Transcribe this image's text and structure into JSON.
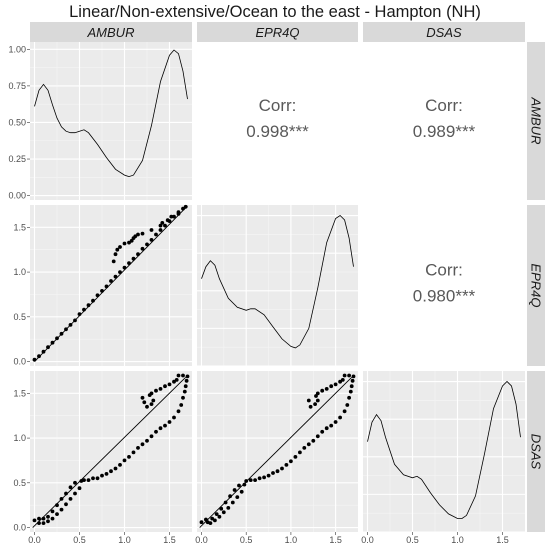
{
  "title": "Linear/Non-extensive/Ocean to the east - Hampton (NH)",
  "variables": [
    "AMBUR",
    "EPR4Q",
    "DSAS"
  ],
  "colors": {
    "panel_bg": "#ebebeb",
    "grid_major": "#ffffff",
    "strip_bg": "#d9d9d9",
    "ink": "#000000"
  },
  "chart_data": {
    "type": "scatter",
    "layout": "pairs-matrix",
    "grid": true,
    "x_ticks": [
      "0.0",
      "0.5",
      "1.0",
      "1.5"
    ],
    "x_range": [
      -0.05,
      1.75
    ],
    "density_panels": [
      {
        "name": "AMBUR",
        "y_ticks": [
          "0.00",
          "0.25",
          "0.50",
          "0.75",
          "1.00"
        ],
        "y_range": [
          -0.03,
          1.05
        ],
        "curve": [
          [
            0.0,
            0.61
          ],
          [
            0.05,
            0.72
          ],
          [
            0.1,
            0.76
          ],
          [
            0.15,
            0.72
          ],
          [
            0.2,
            0.62
          ],
          [
            0.25,
            0.53
          ],
          [
            0.3,
            0.47
          ],
          [
            0.35,
            0.44
          ],
          [
            0.4,
            0.43
          ],
          [
            0.45,
            0.43
          ],
          [
            0.5,
            0.44
          ],
          [
            0.55,
            0.45
          ],
          [
            0.6,
            0.43
          ],
          [
            0.7,
            0.35
          ],
          [
            0.8,
            0.26
          ],
          [
            0.9,
            0.18
          ],
          [
            1.0,
            0.14
          ],
          [
            1.05,
            0.13
          ],
          [
            1.1,
            0.14
          ],
          [
            1.2,
            0.24
          ],
          [
            1.3,
            0.48
          ],
          [
            1.4,
            0.78
          ],
          [
            1.5,
            0.96
          ],
          [
            1.55,
            0.995
          ],
          [
            1.6,
            0.97
          ],
          [
            1.65,
            0.85
          ],
          [
            1.7,
            0.66
          ]
        ]
      },
      {
        "name": "EPR4Q",
        "y_range": [
          0.0,
          1.07
        ],
        "curve": [
          [
            0.0,
            0.58
          ],
          [
            0.05,
            0.66
          ],
          [
            0.1,
            0.7
          ],
          [
            0.15,
            0.67
          ],
          [
            0.2,
            0.58
          ],
          [
            0.3,
            0.45
          ],
          [
            0.4,
            0.39
          ],
          [
            0.5,
            0.37
          ],
          [
            0.55,
            0.38
          ],
          [
            0.6,
            0.38
          ],
          [
            0.7,
            0.34
          ],
          [
            0.8,
            0.26
          ],
          [
            0.9,
            0.18
          ],
          [
            1.0,
            0.13
          ],
          [
            1.05,
            0.12
          ],
          [
            1.1,
            0.14
          ],
          [
            1.2,
            0.25
          ],
          [
            1.3,
            0.52
          ],
          [
            1.4,
            0.82
          ],
          [
            1.5,
            0.98
          ],
          [
            1.55,
            1.0
          ],
          [
            1.6,
            0.97
          ],
          [
            1.65,
            0.85
          ],
          [
            1.7,
            0.66
          ]
        ]
      },
      {
        "name": "DSAS",
        "y_range": [
          0.0,
          1.07
        ],
        "curve": [
          [
            0.0,
            0.6
          ],
          [
            0.05,
            0.73
          ],
          [
            0.1,
            0.78
          ],
          [
            0.15,
            0.74
          ],
          [
            0.2,
            0.63
          ],
          [
            0.3,
            0.45
          ],
          [
            0.4,
            0.38
          ],
          [
            0.5,
            0.36
          ],
          [
            0.55,
            0.37
          ],
          [
            0.6,
            0.35
          ],
          [
            0.7,
            0.26
          ],
          [
            0.8,
            0.18
          ],
          [
            0.9,
            0.12
          ],
          [
            1.0,
            0.09
          ],
          [
            1.05,
            0.09
          ],
          [
            1.1,
            0.11
          ],
          [
            1.2,
            0.24
          ],
          [
            1.3,
            0.52
          ],
          [
            1.4,
            0.82
          ],
          [
            1.5,
            0.97
          ],
          [
            1.55,
            1.0
          ],
          [
            1.6,
            0.97
          ],
          [
            1.65,
            0.85
          ],
          [
            1.7,
            0.63
          ]
        ]
      }
    ],
    "scatter_y_ticks": [
      "0.0",
      "0.5",
      "1.0",
      "1.5"
    ],
    "scatter_y_range": [
      -0.05,
      1.75
    ],
    "scatter_panels": [
      {
        "x_var": "AMBUR",
        "y_var": "EPR4Q",
        "points": [
          [
            0.0,
            0.02
          ],
          [
            0.05,
            0.06
          ],
          [
            0.1,
            0.11
          ],
          [
            0.15,
            0.16
          ],
          [
            0.2,
            0.21
          ],
          [
            0.25,
            0.26
          ],
          [
            0.3,
            0.31
          ],
          [
            0.35,
            0.36
          ],
          [
            0.4,
            0.41
          ],
          [
            0.45,
            0.46
          ],
          [
            0.5,
            0.53
          ],
          [
            0.55,
            0.58
          ],
          [
            0.6,
            0.63
          ],
          [
            0.65,
            0.68
          ],
          [
            0.7,
            0.74
          ],
          [
            0.75,
            0.79
          ],
          [
            0.8,
            0.84
          ],
          [
            0.85,
            0.9
          ],
          [
            0.9,
            0.95
          ],
          [
            0.95,
            1.0
          ],
          [
            1.0,
            1.05
          ],
          [
            1.05,
            1.1
          ],
          [
            1.1,
            1.15
          ],
          [
            1.15,
            1.2
          ],
          [
            1.2,
            1.26
          ],
          [
            1.25,
            1.31
          ],
          [
            1.3,
            1.36
          ],
          [
            1.35,
            1.42
          ],
          [
            1.4,
            1.47
          ],
          [
            1.45,
            1.52
          ],
          [
            1.5,
            1.57
          ],
          [
            1.55,
            1.62
          ],
          [
            1.6,
            1.67
          ],
          [
            1.65,
            1.71
          ],
          [
            1.68,
            1.73
          ],
          [
            1.6,
            1.65
          ],
          [
            1.52,
            1.62
          ],
          [
            1.48,
            1.58
          ],
          [
            1.42,
            1.55
          ],
          [
            1.4,
            1.52
          ],
          [
            1.3,
            1.47
          ],
          [
            1.2,
            1.43
          ],
          [
            1.15,
            1.42
          ],
          [
            1.12,
            1.4
          ],
          [
            1.1,
            1.38
          ],
          [
            1.08,
            1.35
          ],
          [
            1.05,
            1.33
          ],
          [
            1.0,
            1.32
          ],
          [
            0.95,
            1.28
          ],
          [
            0.92,
            1.25
          ],
          [
            0.9,
            1.2
          ],
          [
            0.88,
            1.12
          ]
        ],
        "fit": [
          [
            0.0,
            0.0
          ],
          [
            1.7,
            1.74
          ]
        ]
      },
      {
        "x_var": "AMBUR",
        "y_var": "DSAS",
        "points": [
          [
            0.0,
            0.08
          ],
          [
            0.05,
            0.1
          ],
          [
            0.1,
            0.05
          ],
          [
            0.15,
            0.07
          ],
          [
            0.2,
            0.1
          ],
          [
            0.25,
            0.15
          ],
          [
            0.3,
            0.2
          ],
          [
            0.35,
            0.26
          ],
          [
            0.4,
            0.32
          ],
          [
            0.45,
            0.38
          ],
          [
            0.5,
            0.44
          ],
          [
            0.52,
            0.52
          ],
          [
            0.55,
            0.53
          ],
          [
            0.6,
            0.53
          ],
          [
            0.65,
            0.55
          ],
          [
            0.7,
            0.55
          ],
          [
            0.75,
            0.58
          ],
          [
            0.8,
            0.6
          ],
          [
            0.85,
            0.63
          ],
          [
            0.9,
            0.66
          ],
          [
            0.95,
            0.7
          ],
          [
            1.0,
            0.75
          ],
          [
            1.05,
            0.79
          ],
          [
            1.1,
            0.84
          ],
          [
            1.15,
            0.89
          ],
          [
            1.2,
            0.93
          ],
          [
            1.25,
            0.97
          ],
          [
            1.3,
            1.02
          ],
          [
            1.35,
            1.07
          ],
          [
            1.4,
            1.11
          ],
          [
            1.45,
            1.14
          ],
          [
            1.5,
            1.18
          ],
          [
            1.55,
            1.23
          ],
          [
            1.6,
            1.3
          ],
          [
            1.63,
            1.37
          ],
          [
            1.65,
            1.45
          ],
          [
            1.67,
            1.52
          ],
          [
            1.68,
            1.58
          ],
          [
            1.69,
            1.64
          ],
          [
            1.7,
            1.69
          ],
          [
            1.65,
            1.7
          ],
          [
            1.6,
            1.7
          ],
          [
            1.58,
            1.65
          ],
          [
            1.55,
            1.63
          ],
          [
            1.5,
            1.6
          ],
          [
            1.45,
            1.58
          ],
          [
            1.4,
            1.55
          ],
          [
            1.35,
            1.53
          ],
          [
            1.3,
            1.5
          ],
          [
            1.28,
            1.48
          ],
          [
            1.32,
            1.42
          ],
          [
            1.3,
            1.38
          ],
          [
            1.25,
            1.35
          ],
          [
            1.22,
            1.4
          ],
          [
            1.2,
            1.45
          ],
          [
            0.45,
            0.5
          ],
          [
            0.4,
            0.45
          ],
          [
            0.35,
            0.38
          ],
          [
            0.3,
            0.32
          ],
          [
            0.25,
            0.25
          ],
          [
            0.2,
            0.18
          ],
          [
            0.15,
            0.12
          ],
          [
            0.1,
            0.1
          ],
          [
            0.05,
            0.05
          ]
        ],
        "fit": [
          [
            -0.02,
            0.0
          ],
          [
            1.68,
            1.68
          ]
        ]
      },
      {
        "x_var": "EPR4Q",
        "y_var": "DSAS",
        "points": [
          [
            0.0,
            0.06
          ],
          [
            0.05,
            0.09
          ],
          [
            0.1,
            0.05
          ],
          [
            0.15,
            0.08
          ],
          [
            0.2,
            0.12
          ],
          [
            0.25,
            0.17
          ],
          [
            0.3,
            0.22
          ],
          [
            0.35,
            0.28
          ],
          [
            0.4,
            0.34
          ],
          [
            0.45,
            0.4
          ],
          [
            0.48,
            0.48
          ],
          [
            0.5,
            0.52
          ],
          [
            0.55,
            0.53
          ],
          [
            0.6,
            0.53
          ],
          [
            0.65,
            0.55
          ],
          [
            0.7,
            0.56
          ],
          [
            0.75,
            0.58
          ],
          [
            0.8,
            0.61
          ],
          [
            0.85,
            0.63
          ],
          [
            0.9,
            0.66
          ],
          [
            0.95,
            0.7
          ],
          [
            1.0,
            0.74
          ],
          [
            1.05,
            0.79
          ],
          [
            1.1,
            0.84
          ],
          [
            1.15,
            0.89
          ],
          [
            1.2,
            0.93
          ],
          [
            1.25,
            0.97
          ],
          [
            1.3,
            1.02
          ],
          [
            1.35,
            1.07
          ],
          [
            1.4,
            1.11
          ],
          [
            1.45,
            1.14
          ],
          [
            1.5,
            1.18
          ],
          [
            1.55,
            1.23
          ],
          [
            1.6,
            1.3
          ],
          [
            1.63,
            1.37
          ],
          [
            1.65,
            1.45
          ],
          [
            1.67,
            1.52
          ],
          [
            1.68,
            1.58
          ],
          [
            1.69,
            1.64
          ],
          [
            1.7,
            1.69
          ],
          [
            1.65,
            1.7
          ],
          [
            1.6,
            1.7
          ],
          [
            1.58,
            1.65
          ],
          [
            1.55,
            1.63
          ],
          [
            1.5,
            1.6
          ],
          [
            1.45,
            1.58
          ],
          [
            1.4,
            1.55
          ],
          [
            1.35,
            1.53
          ],
          [
            1.3,
            1.5
          ],
          [
            1.28,
            1.47
          ],
          [
            1.3,
            1.42
          ],
          [
            1.27,
            1.38
          ],
          [
            1.22,
            1.35
          ],
          [
            1.2,
            1.42
          ],
          [
            0.42,
            0.47
          ],
          [
            0.37,
            0.42
          ],
          [
            0.32,
            0.35
          ],
          [
            0.27,
            0.28
          ],
          [
            0.22,
            0.21
          ],
          [
            0.17,
            0.15
          ],
          [
            0.12,
            0.1
          ],
          [
            0.07,
            0.06
          ]
        ],
        "fit": [
          [
            -0.02,
            0.0
          ],
          [
            1.68,
            1.68
          ]
        ]
      }
    ],
    "correlation_panels": [
      {
        "x_var": "EPR4Q",
        "y_var": "AMBUR",
        "label": "Corr:",
        "value": "0.998***"
      },
      {
        "x_var": "DSAS",
        "y_var": "AMBUR",
        "label": "Corr:",
        "value": "0.989***"
      },
      {
        "x_var": "DSAS",
        "y_var": "EPR4Q",
        "label": "Corr:",
        "value": "0.980***"
      }
    ]
  }
}
